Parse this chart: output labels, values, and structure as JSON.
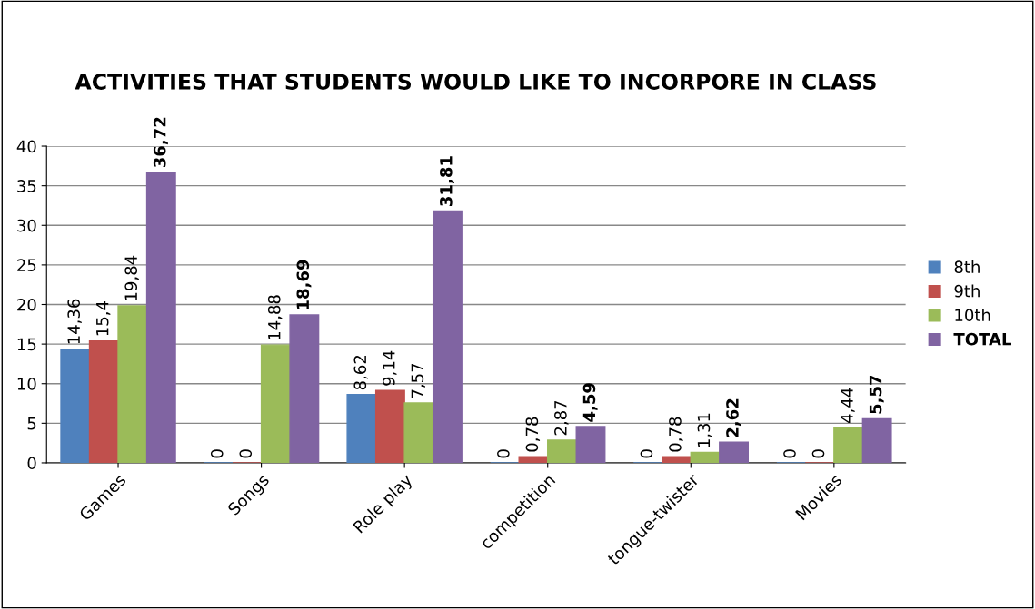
{
  "chart_data": {
    "type": "bar",
    "title": "ACTIVITIES THAT STUDENTS WOULD LIKE TO INCORPORE IN CLASS",
    "categories": [
      "Games",
      "Songs",
      "Role play",
      "competition",
      "tongue-twister",
      "Movies"
    ],
    "series": [
      {
        "name": "8th",
        "color": "#4f81bd",
        "values": [
          14.36,
          0,
          8.62,
          0,
          0,
          0
        ],
        "value_labels": [
          "14,36",
          "0",
          "8,62",
          "0",
          "0",
          "0"
        ]
      },
      {
        "name": "9th",
        "color": "#c0504d",
        "values": [
          15.4,
          0,
          9.14,
          0.78,
          0.78,
          0
        ],
        "value_labels": [
          "15,4",
          "0",
          "9,14",
          "0,78",
          "0,78",
          "0"
        ]
      },
      {
        "name": "10th",
        "color": "#9bbb59",
        "values": [
          19.84,
          14.88,
          7.57,
          2.87,
          1.31,
          4.44
        ],
        "value_labels": [
          "19,84",
          "14,88",
          "7,57",
          "2,87",
          "1,31",
          "4,44"
        ]
      },
      {
        "name": "TOTAL",
        "color": "#8064a2",
        "values": [
          36.72,
          18.69,
          31.81,
          4.59,
          2.62,
          5.57
        ],
        "value_labels": [
          "36,72",
          "18,69",
          "31,81",
          "4,59",
          "2,62",
          "5,57"
        ]
      }
    ],
    "ylim": [
      0,
      40
    ],
    "yticks": [
      0,
      5,
      10,
      15,
      20,
      25,
      30,
      35,
      40
    ],
    "grid": "y",
    "legend": "right"
  }
}
